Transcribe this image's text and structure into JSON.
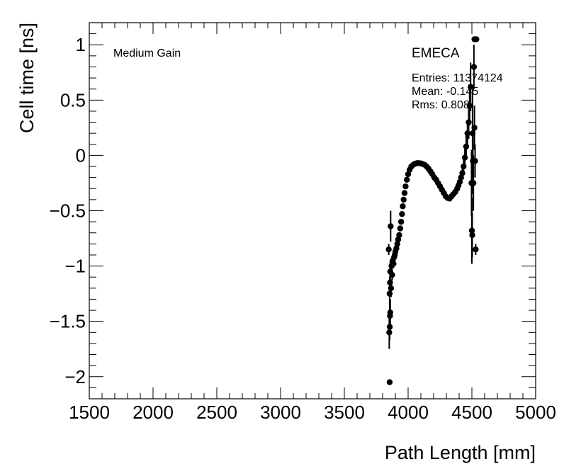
{
  "chart_data": {
    "type": "scatter",
    "title": "",
    "xlabel": "Path Length [mm]",
    "ylabel": "Cell time [ns]",
    "xlim": [
      1500,
      5000
    ],
    "ylim": [
      -2.2,
      1.2
    ],
    "xticks": [
      1500,
      2000,
      2500,
      3000,
      3500,
      4000,
      4500,
      5000
    ],
    "xtick_labels": [
      "1500",
      "2000",
      "2500",
      "3000",
      "3500",
      "4000",
      "4500",
      "5000"
    ],
    "yticks": [
      -2,
      -1.5,
      -1,
      -0.5,
      0,
      0.5,
      1
    ],
    "ytick_labels": [
      "−2",
      "−1.5",
      "−1",
      "−0.5",
      "0",
      "0.5",
      "1"
    ],
    "grid": false,
    "annotation": "Medium Gain",
    "stats_box": {
      "name": "EMECA",
      "entries": "Entries: 11374124",
      "mean": "Mean: -0.145",
      "rms": "Rms: 0.808"
    },
    "series": [
      {
        "marker": "circle",
        "color": "#000000",
        "points": [
          {
            "x": 3855,
            "y": -2.05
          },
          {
            "x": 3848,
            "y": -0.85,
            "err": 0.05
          },
          {
            "x": 3852,
            "y": -1.6,
            "err": 0.15
          },
          {
            "x": 3856,
            "y": -1.55,
            "err": 0.12
          },
          {
            "x": 3858,
            "y": -1.45,
            "err": 0.1
          },
          {
            "x": 3860,
            "y": -1.42,
            "err": 0.12
          },
          {
            "x": 3855,
            "y": -1.25,
            "err": 0.15
          },
          {
            "x": 3858,
            "y": -1.15,
            "err": 0.12
          },
          {
            "x": 3860,
            "y": -1.05,
            "err": 0.1
          },
          {
            "x": 3863,
            "y": -0.64,
            "err": 0.14
          },
          {
            "x": 3866,
            "y": -1.2,
            "err": 0.08
          },
          {
            "x": 3870,
            "y": -1.0,
            "err": 0.06
          },
          {
            "x": 3875,
            "y": -1.08,
            "err": 0.05
          },
          {
            "x": 3880,
            "y": -0.95,
            "err": 0.05
          },
          {
            "x": 3885,
            "y": -0.98,
            "err": 0.04
          },
          {
            "x": 3890,
            "y": -0.92,
            "err": 0.04
          },
          {
            "x": 3895,
            "y": -0.9,
            "err": 0.03
          },
          {
            "x": 3900,
            "y": -0.87,
            "err": 0.03
          },
          {
            "x": 3908,
            "y": -0.84,
            "err": 0.03
          },
          {
            "x": 3915,
            "y": -0.8,
            "err": 0.02
          },
          {
            "x": 3922,
            "y": -0.76
          },
          {
            "x": 3930,
            "y": -0.72
          },
          {
            "x": 3938,
            "y": -0.66
          },
          {
            "x": 3945,
            "y": -0.6
          },
          {
            "x": 3952,
            "y": -0.53
          },
          {
            "x": 3958,
            "y": -0.46
          },
          {
            "x": 3965,
            "y": -0.4
          },
          {
            "x": 3972,
            "y": -0.34
          },
          {
            "x": 3980,
            "y": -0.28
          },
          {
            "x": 3990,
            "y": -0.22
          },
          {
            "x": 4000,
            "y": -0.17
          },
          {
            "x": 4012,
            "y": -0.13
          },
          {
            "x": 4025,
            "y": -0.1
          },
          {
            "x": 4040,
            "y": -0.085
          },
          {
            "x": 4055,
            "y": -0.075
          },
          {
            "x": 4070,
            "y": -0.07
          },
          {
            "x": 4085,
            "y": -0.07
          },
          {
            "x": 4100,
            "y": -0.072
          },
          {
            "x": 4115,
            "y": -0.078
          },
          {
            "x": 4130,
            "y": -0.085
          },
          {
            "x": 4145,
            "y": -0.1
          },
          {
            "x": 4160,
            "y": -0.12
          },
          {
            "x": 4175,
            "y": -0.145
          },
          {
            "x": 4190,
            "y": -0.17
          },
          {
            "x": 4205,
            "y": -0.2
          },
          {
            "x": 4220,
            "y": -0.22
          },
          {
            "x": 4235,
            "y": -0.25
          },
          {
            "x": 4250,
            "y": -0.28
          },
          {
            "x": 4265,
            "y": -0.31
          },
          {
            "x": 4280,
            "y": -0.34
          },
          {
            "x": 4295,
            "y": -0.37
          },
          {
            "x": 4310,
            "y": -0.385
          },
          {
            "x": 4325,
            "y": -0.39
          },
          {
            "x": 4340,
            "y": -0.37
          },
          {
            "x": 4355,
            "y": -0.35
          },
          {
            "x": 4370,
            "y": -0.33,
            "err": 0.03
          },
          {
            "x": 4385,
            "y": -0.3,
            "err": 0.03
          },
          {
            "x": 4395,
            "y": -0.27,
            "err": 0.04
          },
          {
            "x": 4405,
            "y": -0.24,
            "err": 0.05
          },
          {
            "x": 4415,
            "y": -0.2,
            "err": 0.05
          },
          {
            "x": 4425,
            "y": -0.16,
            "err": 0.06
          },
          {
            "x": 4435,
            "y": -0.1,
            "err": 0.07
          },
          {
            "x": 4445,
            "y": -0.02,
            "err": 0.08
          },
          {
            "x": 4455,
            "y": 0.08,
            "err": 0.1
          },
          {
            "x": 4465,
            "y": 0.2,
            "err": 0.12
          },
          {
            "x": 4475,
            "y": 0.3,
            "err": 0.15
          },
          {
            "x": 4482,
            "y": 0.45,
            "err": 0.18
          },
          {
            "x": 4490,
            "y": 0.62,
            "err": 0.22
          },
          {
            "x": 4497,
            "y": -0.25,
            "err": 0.3
          },
          {
            "x": 4500,
            "y": -0.68,
            "err": 0.3
          },
          {
            "x": 4503,
            "y": -0.72,
            "err": 0.2
          },
          {
            "x": 4505,
            "y": 0.2,
            "err": 0.4
          },
          {
            "x": 4508,
            "y": -0.05,
            "err": 0.3
          },
          {
            "x": 4512,
            "y": -0.25,
            "err": 0.25
          },
          {
            "x": 4516,
            "y": 0.8,
            "err": 0.2
          },
          {
            "x": 4520,
            "y": 0.25,
            "err": 0.2
          },
          {
            "x": 4525,
            "y": -0.05,
            "err": 0.15
          },
          {
            "x": 4530,
            "y": -0.85,
            "err": 0.05
          },
          {
            "x": 4520,
            "y": 1.05
          },
          {
            "x": 4535,
            "y": 1.05
          }
        ]
      }
    ]
  }
}
